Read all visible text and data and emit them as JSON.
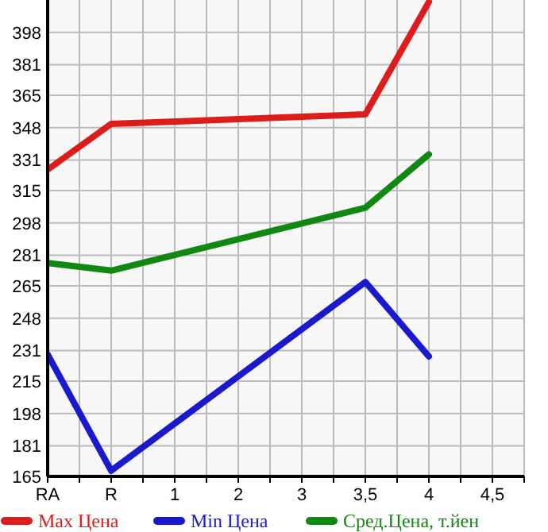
{
  "chart_data": {
    "type": "line",
    "categories": [
      "RA",
      "R",
      "1",
      "2",
      "3",
      "3,5",
      "4",
      "4,5"
    ],
    "series": [
      {
        "name": "Max Цена",
        "color": "#dd1c1c",
        "x": [
          "RA",
          "R",
          "3,5",
          "4"
        ],
        "values": [
          326,
          350,
          355,
          414
        ]
      },
      {
        "name": "Min Цена",
        "color": "#1a1acc",
        "x": [
          "RA",
          "R",
          "3,5",
          "4"
        ],
        "values": [
          229,
          168,
          267,
          228
        ]
      },
      {
        "name": "Сред.Цена, т.йен",
        "color": "#118811",
        "x": [
          "RA",
          "R",
          "3,5",
          "4"
        ],
        "values": [
          277,
          273,
          306,
          334
        ]
      }
    ],
    "ylim": [
      165,
      415
    ],
    "yticks": [
      165,
      181,
      198,
      215,
      231,
      248,
      265,
      281,
      298,
      315,
      331,
      348,
      365,
      381,
      398
    ],
    "grid": true,
    "legend": "bottom",
    "line_style": "solid",
    "marker": "none"
  }
}
